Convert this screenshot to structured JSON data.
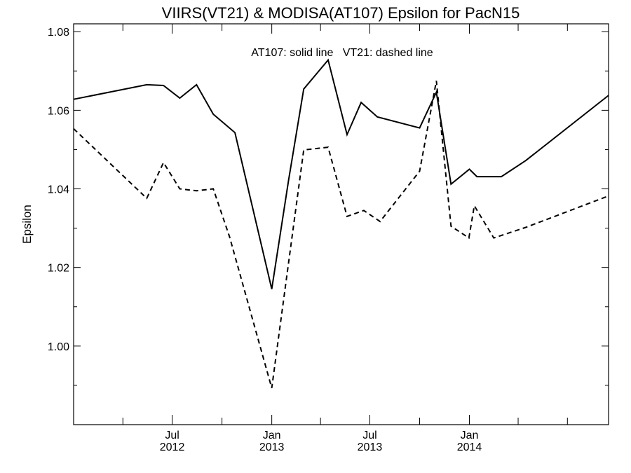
{
  "chart_data": {
    "type": "line",
    "title": "VIIRS(VT21) & MODISA(AT107)  Epsilon for PacN15",
    "annotation": "AT107: solid line   VT21: dashed line",
    "ylabel": "Epsilon",
    "xlabel": "",
    "ylim": [
      0.98,
      1.082
    ],
    "xlim": [
      "2012-01-01",
      "2014-09-15"
    ],
    "grid": false,
    "y_ticks": [
      {
        "value": 1.0,
        "label": "1.00"
      },
      {
        "value": 1.02,
        "label": "1.02"
      },
      {
        "value": 1.04,
        "label": "1.04"
      },
      {
        "value": 1.06,
        "label": "1.06"
      },
      {
        "value": 1.08,
        "label": "1.08"
      }
    ],
    "x_ticks": [
      {
        "date": "2012-07-01",
        "month": "Jul",
        "year": "2012"
      },
      {
        "date": "2013-01-01",
        "month": "Jan",
        "year": "2013"
      },
      {
        "date": "2013-07-01",
        "month": "Jul",
        "year": "2013"
      },
      {
        "date": "2014-01-01",
        "month": "Jan",
        "year": "2014"
      }
    ],
    "series": [
      {
        "name": "AT107",
        "style": "solid",
        "points": [
          [
            "2012-01-01",
            1.0628
          ],
          [
            "2012-05-15",
            1.0665
          ],
          [
            "2012-06-15",
            1.0663
          ],
          [
            "2012-07-15",
            1.0631
          ],
          [
            "2012-08-15",
            1.0665
          ],
          [
            "2012-09-15",
            1.059
          ],
          [
            "2012-10-25",
            1.0543
          ],
          [
            "2013-01-01",
            1.0145
          ],
          [
            "2013-02-01",
            1.0422
          ],
          [
            "2013-03-01",
            1.0654
          ],
          [
            "2013-04-15",
            1.0728
          ],
          [
            "2013-05-20",
            1.0538
          ],
          [
            "2013-06-15",
            1.062
          ],
          [
            "2013-07-15",
            1.0583
          ],
          [
            "2013-10-01",
            1.0555
          ],
          [
            "2013-11-01",
            1.0646
          ],
          [
            "2013-11-28",
            1.0412
          ],
          [
            "2014-01-01",
            1.045
          ],
          [
            "2014-01-15",
            1.0431
          ],
          [
            "2014-03-01",
            1.0431
          ],
          [
            "2014-04-15",
            1.0472
          ],
          [
            "2014-09-15",
            1.0638
          ]
        ]
      },
      {
        "name": "VT21",
        "style": "dashed",
        "points": [
          [
            "2012-01-01",
            1.0553
          ],
          [
            "2012-05-15",
            1.0376
          ],
          [
            "2012-06-15",
            1.0467
          ],
          [
            "2012-07-15",
            1.04
          ],
          [
            "2012-08-15",
            1.0395
          ],
          [
            "2012-09-15",
            1.04
          ],
          [
            "2012-10-15",
            1.0278
          ],
          [
            "2013-01-01",
            0.9893
          ],
          [
            "2013-03-01",
            1.0499
          ],
          [
            "2013-04-15",
            1.0506
          ],
          [
            "2013-05-20",
            1.033
          ],
          [
            "2013-06-20",
            1.0345
          ],
          [
            "2013-07-20",
            1.0317
          ],
          [
            "2013-10-01",
            1.0445
          ],
          [
            "2013-11-01",
            1.0675
          ],
          [
            "2013-11-28",
            1.0305
          ],
          [
            "2013-12-31",
            1.0275
          ],
          [
            "2014-01-10",
            1.0357
          ],
          [
            "2014-02-15",
            1.0275
          ],
          [
            "2014-04-15",
            1.0302
          ],
          [
            "2014-09-15",
            1.0382
          ]
        ]
      }
    ]
  }
}
